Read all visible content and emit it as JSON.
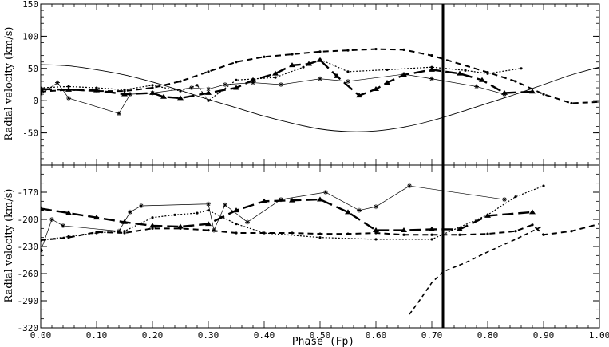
{
  "chart_data": [
    {
      "type": "line",
      "ylabel": "Radial velocity (km/s)",
      "xlim": [
        0.0,
        1.0
      ],
      "ylim": [
        -100,
        150
      ],
      "y_ticks": [
        "-50",
        "0",
        "50",
        "100",
        "150"
      ],
      "marker_phase": 0.72,
      "series": [
        {
          "style": "solid-sine",
          "x": [
            0.0,
            0.05,
            0.1,
            0.15,
            0.2,
            0.25,
            0.3,
            0.35,
            0.4,
            0.45,
            0.5,
            0.55,
            0.6,
            0.65,
            0.7,
            0.75,
            0.8,
            0.85,
            0.9,
            0.95,
            1.0
          ],
          "y": [
            56,
            54,
            48,
            40,
            29,
            16,
            2,
            -11,
            -24,
            -35,
            -44,
            -48,
            -47,
            -41,
            -31,
            -18,
            -4,
            10,
            25,
            40,
            52
          ]
        },
        {
          "style": "thin-star",
          "x": [
            0.0,
            0.03,
            0.05,
            0.14,
            0.16,
            0.2,
            0.27,
            0.3,
            0.33,
            0.38,
            0.43,
            0.5,
            0.55,
            0.65,
            0.7,
            0.78,
            0.83
          ],
          "y": [
            10,
            28,
            4,
            -20,
            10,
            12,
            20,
            18,
            25,
            28,
            25,
            34,
            30,
            41,
            34,
            22,
            10
          ]
        },
        {
          "style": "dotted",
          "x": [
            0.0,
            0.05,
            0.1,
            0.15,
            0.2,
            0.25,
            0.28,
            0.3,
            0.35,
            0.42,
            0.47,
            0.5,
            0.55,
            0.62,
            0.7,
            0.76,
            0.8,
            0.86
          ],
          "y": [
            20,
            22,
            20,
            17,
            24,
            15,
            24,
            0,
            32,
            36,
            52,
            64,
            45,
            48,
            52,
            47,
            42,
            50
          ]
        },
        {
          "style": "dashed-thick",
          "x": [
            0.0,
            0.05,
            0.1,
            0.15,
            0.2,
            0.25,
            0.3,
            0.35,
            0.4,
            0.45,
            0.5,
            0.55,
            0.6,
            0.65,
            0.7,
            0.8,
            0.85,
            0.9,
            0.95,
            1.0
          ],
          "y": [
            14,
            17,
            15,
            15,
            20,
            30,
            45,
            60,
            68,
            72,
            76,
            78,
            80,
            79,
            70,
            44,
            30,
            10,
            -4,
            -2
          ]
        },
        {
          "style": "longdash-triangle",
          "x": [
            0.0,
            0.05,
            0.1,
            0.15,
            0.2,
            0.22,
            0.25,
            0.3,
            0.35,
            0.38,
            0.42,
            0.45,
            0.48,
            0.5,
            0.53,
            0.57,
            0.6,
            0.62,
            0.65,
            0.7,
            0.75,
            0.79,
            0.83,
            0.88
          ],
          "y": [
            18,
            17,
            16,
            10,
            12,
            6,
            4,
            12,
            20,
            32,
            42,
            55,
            57,
            63,
            38,
            8,
            18,
            28,
            40,
            48,
            42,
            32,
            12,
            14
          ]
        }
      ]
    },
    {
      "type": "line",
      "ylabel": "Radial velocity (km/s)",
      "xlabel": "Phase (Fp)",
      "xlim": [
        0.0,
        1.0
      ],
      "ylim": [
        -320,
        -140
      ],
      "y_ticks": [
        "-320",
        "-290",
        "-260",
        "-230",
        "-200",
        "-170"
      ],
      "x_ticks": [
        "0.00",
        "0.10",
        "0.20",
        "0.30",
        "0.40",
        "0.50",
        "0.60",
        "0.70",
        "0.80",
        "0.90",
        "1.00"
      ],
      "marker_phase": 0.72,
      "series": [
        {
          "style": "thin-star",
          "x": [
            0.0,
            0.02,
            0.04,
            0.14,
            0.16,
            0.18,
            0.3,
            0.31,
            0.33,
            0.37,
            0.43,
            0.51,
            0.57,
            0.6,
            0.66,
            0.83
          ],
          "y": [
            -235,
            -200,
            -207,
            -213,
            -192,
            -185,
            -183,
            -212,
            -184,
            -203,
            -178,
            -170,
            -190,
            -186,
            -163,
            -178
          ]
        },
        {
          "style": "dotted",
          "x": [
            0.0,
            0.05,
            0.1,
            0.15,
            0.2,
            0.24,
            0.28,
            0.3,
            0.35,
            0.4,
            0.5,
            0.6,
            0.7,
            0.8,
            0.85,
            0.9
          ],
          "y": [
            -223,
            -219,
            -215,
            -213,
            -198,
            -195,
            -193,
            -190,
            -205,
            -215,
            -220,
            -222,
            -222,
            -195,
            -175,
            -163
          ]
        },
        {
          "style": "dashed-thick",
          "x": [
            0.0,
            0.05,
            0.1,
            0.15,
            0.2,
            0.25,
            0.3,
            0.35,
            0.4,
            0.45,
            0.5,
            0.55,
            0.6,
            0.65,
            0.7,
            0.75,
            0.8,
            0.85,
            0.88,
            0.9,
            0.95,
            1.0
          ],
          "y": [
            -223,
            -220,
            -214,
            -215,
            -210,
            -210,
            -212,
            -215,
            -215,
            -215,
            -216,
            -216,
            -215,
            -217,
            -217,
            -217,
            -216,
            -213,
            -206,
            -217,
            -213,
            -205
          ]
        },
        {
          "style": "longdash-triangle",
          "x": [
            0.0,
            0.05,
            0.1,
            0.15,
            0.2,
            0.25,
            0.3,
            0.35,
            0.4,
            0.45,
            0.5,
            0.55,
            0.6,
            0.65,
            0.7,
            0.75,
            0.8,
            0.88
          ],
          "y": [
            -188,
            -193,
            -198,
            -203,
            -207,
            -208,
            -205,
            -190,
            -180,
            -179,
            -178,
            -192,
            -212,
            -212,
            -211,
            -211,
            -196,
            -192
          ]
        },
        {
          "style": "dashed-steep",
          "x": [
            0.66,
            0.68,
            0.7,
            0.72,
            0.76,
            0.8,
            0.85,
            0.9
          ],
          "y": [
            -305,
            -288,
            -270,
            -258,
            -248,
            -236,
            -222,
            -207
          ]
        }
      ]
    }
  ]
}
